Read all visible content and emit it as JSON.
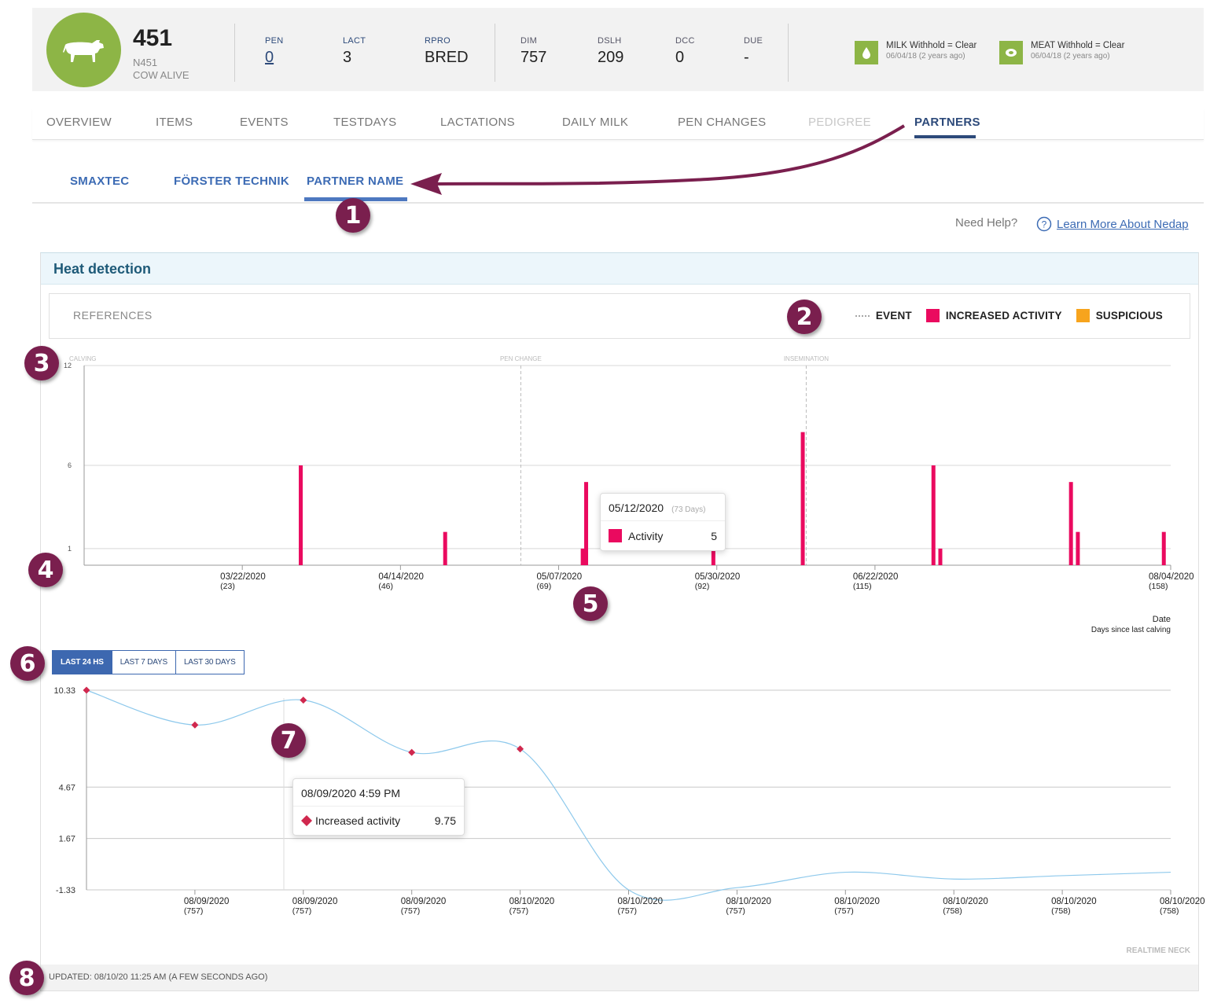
{
  "animal": {
    "id": "451",
    "tag": "N451",
    "status": "COW ALIVE"
  },
  "stats": [
    {
      "label": "PEN",
      "value": "0"
    },
    {
      "label": "LACT",
      "value": "3"
    },
    {
      "label": "RPRO",
      "value": "BRED"
    },
    {
      "label": "DIM",
      "value": "757"
    },
    {
      "label": "DSLH",
      "value": "209"
    },
    {
      "label": "DCC",
      "value": "0"
    },
    {
      "label": "DUE",
      "value": "-"
    }
  ],
  "withhold": {
    "milk": {
      "title": "MILK Withhold = Clear",
      "date": "06/04/18 (2 years ago)"
    },
    "meat": {
      "title": "MEAT Withhold = Clear",
      "date": "06/04/18 (2 years ago)"
    }
  },
  "tabs": [
    "OVERVIEW",
    "ITEMS",
    "EVENTS",
    "TESTDAYS",
    "LACTATIONS",
    "DAILY MILK",
    "PEN CHANGES",
    "PEDIGREE",
    "PARTNERS"
  ],
  "subtabs": [
    "SMAXTEC",
    "FÖRSTER TECHNIK",
    "PARTNER NAME"
  ],
  "help": {
    "question": "Need Help?",
    "link": "Learn More About Nedap"
  },
  "panel": {
    "title": "Heat detection",
    "references": "REFERENCES",
    "legend": {
      "event": "EVENT",
      "increased": "INCREASED ACTIVITY",
      "suspicious": "SUSPICIOUS"
    },
    "updated": "UPDATED: 08/10/20 11:25 AM (A FEW SECONDS AGO)",
    "source": "REALTIME NECK"
  },
  "colors": {
    "activity": "#ea0a5f",
    "suspicious": "#f7a41d",
    "accent": "#2d4a7a",
    "badge": "#7a1f4e",
    "cow": "#8db546"
  },
  "range_buttons": [
    "LAST 24 HS",
    "LAST 7 DAYS",
    "LAST 30 DAYS"
  ],
  "tooltips": {
    "bar": {
      "date": "05/12/2020",
      "days": "(73 Days)",
      "label": "Activity",
      "value": "5"
    },
    "line": {
      "date": "08/09/2020 4:59 PM",
      "label": "Increased activity",
      "value": "9.75"
    }
  },
  "badges": [
    "1",
    "2",
    "3",
    "4",
    "5",
    "6",
    "7",
    "8"
  ],
  "chart_data": [
    {
      "type": "bar",
      "x_title": "Date",
      "x_subtitle": "Days since last calving",
      "y_ticks": [
        1,
        6,
        12
      ],
      "ylim": [
        0,
        12
      ],
      "x_ticks": [
        {
          "date": "03/22/2020",
          "days": "(23)",
          "day": 23
        },
        {
          "date": "04/14/2020",
          "days": "(46)",
          "day": 46
        },
        {
          "date": "05/07/2020",
          "days": "(69)",
          "day": 69
        },
        {
          "date": "05/30/2020",
          "days": "(92)",
          "day": 92
        },
        {
          "date": "06/22/2020",
          "days": "(115)",
          "day": 115
        },
        {
          "date": "08/04/2020",
          "days": "(158)",
          "day": 158
        }
      ],
      "xlim": [
        0,
        158
      ],
      "events": [
        {
          "label": "CALVING",
          "day": 0
        },
        {
          "label": "PEN CHANGE",
          "day": 63.5
        },
        {
          "label": "INSEMINATION",
          "day": 105
        }
      ],
      "series": [
        {
          "name": "INCREASED ACTIVITY",
          "points": [
            {
              "day": 31.5,
              "value": 6
            },
            {
              "day": 52.5,
              "value": 2
            },
            {
              "day": 72.5,
              "value": 1
            },
            {
              "day": 73,
              "value": 5
            },
            {
              "day": 91.5,
              "value": 1
            },
            {
              "day": 104.5,
              "value": 8
            },
            {
              "day": 123.5,
              "value": 6
            },
            {
              "day": 124.5,
              "value": 1
            },
            {
              "day": 143.5,
              "value": 5
            },
            {
              "day": 144.5,
              "value": 2
            },
            {
              "day": 157,
              "value": 2
            }
          ]
        }
      ]
    },
    {
      "type": "line",
      "y_ticks": [
        -1.33,
        1.67,
        4.67,
        10.33
      ],
      "ylim": [
        -1.33,
        10.33
      ],
      "x_ticks": [
        {
          "date": "08/09/2020",
          "days": "(757)"
        },
        {
          "date": "08/09/2020",
          "days": "(757)"
        },
        {
          "date": "08/09/2020",
          "days": "(757)"
        },
        {
          "date": "08/10/2020",
          "days": "(757)"
        },
        {
          "date": "08/10/2020",
          "days": "(757)"
        },
        {
          "date": "08/10/2020",
          "days": "(757)"
        },
        {
          "date": "08/10/2020",
          "days": "(757)"
        },
        {
          "date": "08/10/2020",
          "days": "(758)"
        },
        {
          "date": "08/10/2020",
          "days": "(758)"
        },
        {
          "date": "08/10/2020",
          "days": "(758)"
        }
      ],
      "series": [
        {
          "name": "Increased activity",
          "points": [
            {
              "t": 0,
              "value": 10.33,
              "marker": true
            },
            {
              "t": 1,
              "value": 8.3,
              "marker": true
            },
            {
              "t": 2,
              "value": 9.75,
              "marker": true
            },
            {
              "t": 3,
              "value": 6.7,
              "marker": true
            },
            {
              "t": 4,
              "value": 6.9,
              "marker": true
            },
            {
              "t": 5,
              "value": -1.33,
              "marker": false
            },
            {
              "t": 6,
              "value": -1.2,
              "marker": false
            },
            {
              "t": 7,
              "value": -0.3,
              "marker": false
            },
            {
              "t": 8,
              "value": -0.7,
              "marker": false
            },
            {
              "t": 9,
              "value": -0.5,
              "marker": false
            },
            {
              "t": 10,
              "value": -0.3,
              "marker": false
            }
          ]
        }
      ]
    }
  ]
}
